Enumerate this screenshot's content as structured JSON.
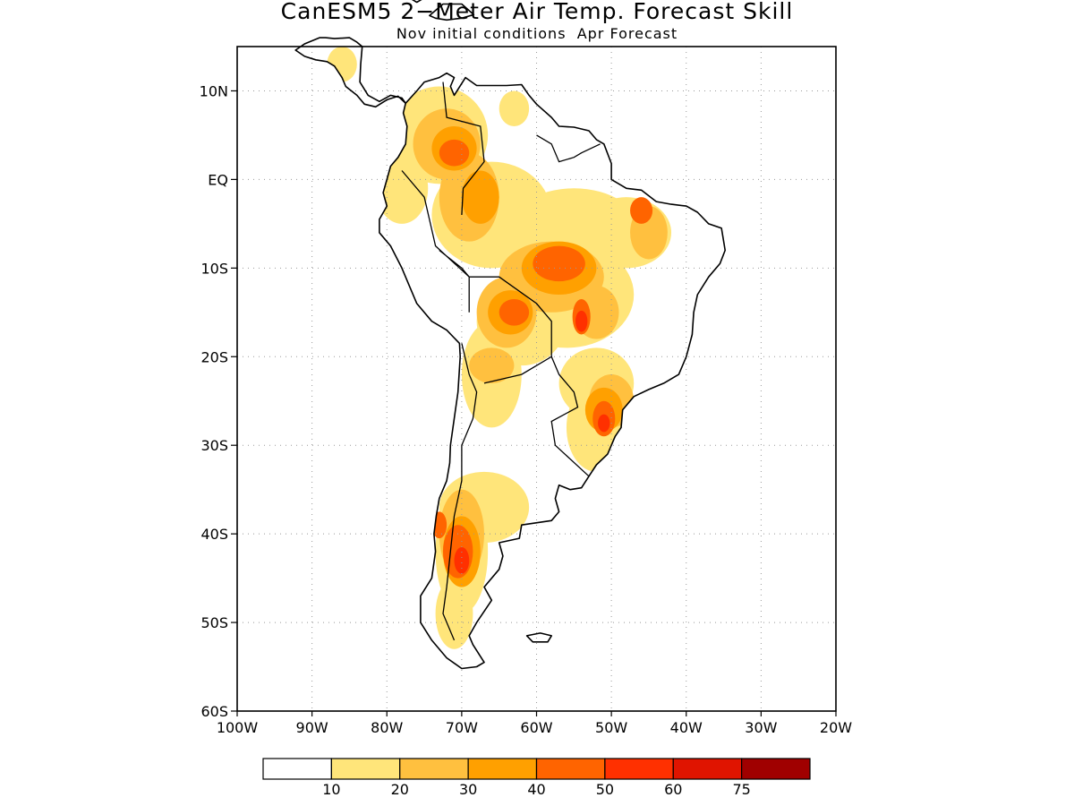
{
  "title": "CanESM5 2−Meter Air Temp. Forecast Skill",
  "subtitle": "Nov initial conditions  Apr Forecast",
  "map": {
    "region": "South America",
    "lon_range": [
      -100,
      -20
    ],
    "lat_range": [
      -60,
      15
    ],
    "lat_labels": [
      "10N",
      "EQ",
      "10S",
      "20S",
      "30S",
      "40S",
      "50S",
      "60S"
    ],
    "lon_labels": [
      "100W",
      "90W",
      "80W",
      "70W",
      "60W",
      "50W",
      "40W",
      "30W",
      "20W"
    ],
    "gridlines": "dotted"
  },
  "legend": {
    "tick_labels": [
      "10",
      "20",
      "30",
      "40",
      "50",
      "60",
      "75"
    ],
    "colors": [
      "#ffffff",
      "#ffe57a",
      "#ffc03f",
      "#ffa000",
      "#ff6400",
      "#ff3000",
      "#e01400",
      "#a00000"
    ]
  }
}
